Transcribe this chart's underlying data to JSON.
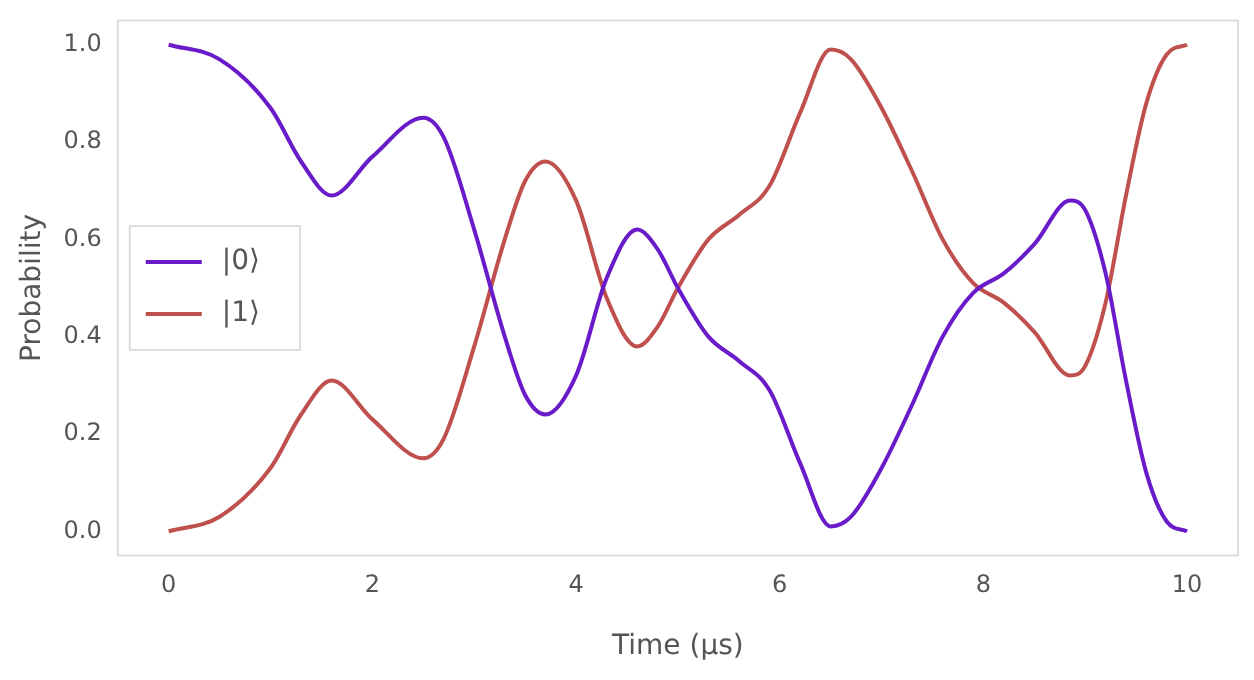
{
  "chart_data": {
    "type": "line",
    "xlabel": "Time (μs)",
    "ylabel": "Probability",
    "x": [
      0,
      0.5,
      1.0,
      1.3,
      1.6,
      2.0,
      2.5,
      2.7,
      3.0,
      3.3,
      3.5,
      3.7,
      4.0,
      4.3,
      4.6,
      4.8,
      5.0,
      5.3,
      5.6,
      5.9,
      6.2,
      6.5,
      6.7,
      7.0,
      7.3,
      7.6,
      7.9,
      8.2,
      8.5,
      8.85,
      9.0,
      9.2,
      9.4,
      9.6,
      9.8,
      10
    ],
    "series": [
      {
        "name": "|0⟩",
        "color": "#6a1bc9",
        "values": [
          1.0,
          0.97,
          0.87,
          0.76,
          0.69,
          0.77,
          0.85,
          0.81,
          0.62,
          0.4,
          0.28,
          0.24,
          0.32,
          0.52,
          0.62,
          0.58,
          0.5,
          0.4,
          0.35,
          0.29,
          0.14,
          0.01,
          0.03,
          0.13,
          0.26,
          0.4,
          0.49,
          0.53,
          0.59,
          0.68,
          0.66,
          0.53,
          0.31,
          0.12,
          0.02,
          0.0
        ]
      },
      {
        "name": "|1⟩",
        "color": "#c0504d",
        "values": [
          0.0,
          0.03,
          0.13,
          0.24,
          0.31,
          0.23,
          0.15,
          0.19,
          0.38,
          0.6,
          0.72,
          0.76,
          0.68,
          0.48,
          0.38,
          0.42,
          0.5,
          0.6,
          0.65,
          0.71,
          0.86,
          0.99,
          0.97,
          0.87,
          0.74,
          0.6,
          0.51,
          0.47,
          0.41,
          0.32,
          0.34,
          0.47,
          0.69,
          0.88,
          0.98,
          1.0
        ]
      }
    ],
    "xlim": [
      -0.5,
      10.5
    ],
    "xticks": [
      0,
      2,
      4,
      6,
      8,
      10
    ],
    "ylim": [
      -0.05,
      1.05
    ],
    "yticks": [
      {
        "value": 0,
        "label": "0.0"
      },
      {
        "value": 0.2,
        "label": "0.2"
      },
      {
        "value": 0.4,
        "label": "0.4"
      },
      {
        "value": 0.6,
        "label": "0.6"
      },
      {
        "value": 0.8,
        "label": "0.8"
      },
      {
        "value": 1.0,
        "label": "1.0"
      }
    ],
    "grid": false,
    "legend": "left",
    "marker": "none",
    "line_style": "solid"
  }
}
